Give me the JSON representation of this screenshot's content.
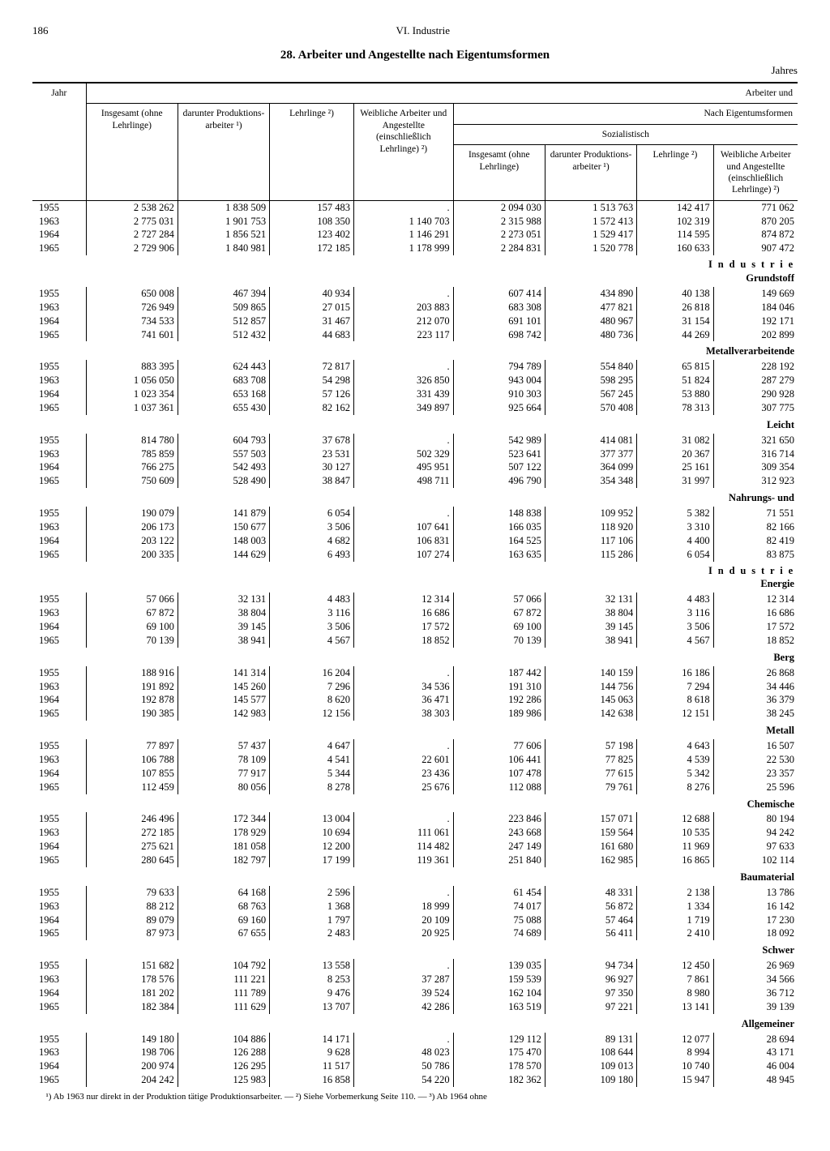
{
  "page_number": "186",
  "chapter": "VI. Industrie",
  "title": "28. Arbeiter und Angestellte nach Eigentumsformen",
  "subtitle_right": "Jahres",
  "header": {
    "row1_right": "Arbeiter und",
    "row2_right": "Nach Eigentumsformen",
    "row3_mid": "Sozialistisch",
    "jahr": "Jahr",
    "c1": "Insgesamt (ohne Lehrlinge)",
    "c2": "darunter Produktions- arbeiter ¹)",
    "c3": "Lehrlinge ²)",
    "c4": "Weibliche Arbeiter und Angestellte (einschließlich Lehrlinge) ²)",
    "c5": "Insgesamt (ohne Lehrlinge)",
    "c6": "darunter Produktions- arbeiter ¹)",
    "c7": "Lehrlinge ²)",
    "c8": "Weibliche Arbeiter und Angestellte (einschließlich Lehrlinge) ²)"
  },
  "groups": [
    {
      "label_top": "",
      "label_bot": "",
      "rows": [
        [
          "1955",
          "2 538 262",
          "1 838 509",
          "157 483",
          ".",
          "2 094 030",
          "1 513 763",
          "142 417",
          "771 062"
        ],
        [
          "1963",
          "2 775 031",
          "1 901 753",
          "108 350",
          "1 140 703",
          "2 315 988",
          "1 572 413",
          "102 319",
          "870 205"
        ],
        [
          "1964",
          "2 727 284",
          "1 856 521",
          "123 402",
          "1 146 291",
          "2 273 051",
          "1 529 417",
          "114 595",
          "874 872"
        ],
        [
          "1965",
          "2 729 906",
          "1 840 981",
          "172 185",
          "1 178 999",
          "2 284 831",
          "1 520 778",
          "160 633",
          "907 472"
        ]
      ]
    },
    {
      "label_top": "I n d u s t r i e",
      "label_bot": "Grundstoff",
      "rows": [
        [
          "1955",
          "650 008",
          "467 394",
          "40 934",
          ".",
          "607 414",
          "434 890",
          "40 138",
          "149 669"
        ],
        [
          "1963",
          "726 949",
          "509 865",
          "27 015",
          "203 883",
          "683 308",
          "477 821",
          "26 818",
          "184 046"
        ],
        [
          "1964",
          "734 533",
          "512 857",
          "31 467",
          "212 070",
          "691 101",
          "480 967",
          "31 154",
          "192 171"
        ],
        [
          "1965",
          "741 601",
          "512 432",
          "44 683",
          "223 117",
          "698 742",
          "480 736",
          "44 269",
          "202 899"
        ]
      ]
    },
    {
      "label_top": "",
      "label_bot": "Metallverarbeitende",
      "rows": [
        [
          "1955",
          "883 395",
          "624 443",
          "72 817",
          ".",
          "794 789",
          "554 840",
          "65 815",
          "228 192"
        ],
        [
          "1963",
          "1 056 050",
          "683 708",
          "54 298",
          "326 850",
          "943 004",
          "598 295",
          "51 824",
          "287 279"
        ],
        [
          "1964",
          "1 023 354",
          "653 168",
          "57 126",
          "331 439",
          "910 303",
          "567 245",
          "53 880",
          "290 928"
        ],
        [
          "1965",
          "1 037 361",
          "655 430",
          "82 162",
          "349 897",
          "925 664",
          "570 408",
          "78 313",
          "307 775"
        ]
      ]
    },
    {
      "label_top": "",
      "label_bot": "Leicht",
      "rows": [
        [
          "1955",
          "814 780",
          "604 793",
          "37 678",
          ".",
          "542 989",
          "414 081",
          "31 082",
          "321 650"
        ],
        [
          "1963",
          "785 859",
          "557 503",
          "23 531",
          "502 329",
          "523 641",
          "377 377",
          "20 367",
          "316 714"
        ],
        [
          "1964",
          "766 275",
          "542 493",
          "30 127",
          "495 951",
          "507 122",
          "364 099",
          "25 161",
          "309 354"
        ],
        [
          "1965",
          "750 609",
          "528 490",
          "38 847",
          "498 711",
          "496 790",
          "354 348",
          "31 997",
          "312 923"
        ]
      ]
    },
    {
      "label_top": "",
      "label_bot": "Nahrungs- und",
      "rows": [
        [
          "1955",
          "190 079",
          "141 879",
          "6 054",
          ".",
          "148 838",
          "109 952",
          "5 382",
          "71 551"
        ],
        [
          "1963",
          "206 173",
          "150 677",
          "3 506",
          "107 641",
          "166 035",
          "118 920",
          "3 310",
          "82 166"
        ],
        [
          "1964",
          "203 122",
          "148 003",
          "4 682",
          "106 831",
          "164 525",
          "117 106",
          "4 400",
          "82 419"
        ],
        [
          "1965",
          "200 335",
          "144 629",
          "6 493",
          "107 274",
          "163 635",
          "115 286",
          "6 054",
          "83 875"
        ]
      ]
    },
    {
      "label_top": "I n d u s t r i e",
      "label_bot": "Energie",
      "rows": [
        [
          "1955",
          "57 066",
          "32 131",
          "4 483",
          "12 314",
          "57 066",
          "32 131",
          "4 483",
          "12 314"
        ],
        [
          "1963",
          "67 872",
          "38 804",
          "3 116",
          "16 686",
          "67 872",
          "38 804",
          "3 116",
          "16 686"
        ],
        [
          "1964",
          "69 100",
          "39 145",
          "3 506",
          "17 572",
          "69 100",
          "39 145",
          "3 506",
          "17 572"
        ],
        [
          "1965",
          "70 139",
          "38 941",
          "4 567",
          "18 852",
          "70 139",
          "38 941",
          "4 567",
          "18 852"
        ]
      ]
    },
    {
      "label_top": "",
      "label_bot": "Berg",
      "rows": [
        [
          "1955",
          "188 916",
          "141 314",
          "16 204",
          ".",
          "187 442",
          "140 159",
          "16 186",
          "26 868"
        ],
        [
          "1963",
          "191 892",
          "145 260",
          "7 296",
          "34 536",
          "191 310",
          "144 756",
          "7 294",
          "34 446"
        ],
        [
          "1964",
          "192 878",
          "145 577",
          "8 620",
          "36 471",
          "192 286",
          "145 063",
          "8 618",
          "36 379"
        ],
        [
          "1965",
          "190 385",
          "142 983",
          "12 156",
          "38 303",
          "189 986",
          "142 638",
          "12 151",
          "38 245"
        ]
      ]
    },
    {
      "label_top": "",
      "label_bot": "Metall",
      "rows": [
        [
          "1955",
          "77 897",
          "57 437",
          "4 647",
          ".",
          "77 606",
          "57 198",
          "4 643",
          "16 507"
        ],
        [
          "1963",
          "106 788",
          "78 109",
          "4 541",
          "22 601",
          "106 441",
          "77 825",
          "4 539",
          "22 530"
        ],
        [
          "1964",
          "107 855",
          "77 917",
          "5 344",
          "23 436",
          "107 478",
          "77 615",
          "5 342",
          "23 357"
        ],
        [
          "1965",
          "112 459",
          "80 056",
          "8 278",
          "25 676",
          "112 088",
          "79 761",
          "8 276",
          "25 596"
        ]
      ]
    },
    {
      "label_top": "",
      "label_bot": "Chemische",
      "rows": [
        [
          "1955",
          "246 496",
          "172 344",
          "13 004",
          ".",
          "223 846",
          "157 071",
          "12 688",
          "80 194"
        ],
        [
          "1963",
          "272 185",
          "178 929",
          "10 694",
          "111 061",
          "243 668",
          "159 564",
          "10 535",
          "94 242"
        ],
        [
          "1964",
          "275 621",
          "181 058",
          "12 200",
          "114 482",
          "247 149",
          "161 680",
          "11 969",
          "97 633"
        ],
        [
          "1965",
          "280 645",
          "182 797",
          "17 199",
          "119 361",
          "251 840",
          "162 985",
          "16 865",
          "102 114"
        ]
      ]
    },
    {
      "label_top": "",
      "label_bot": "Baumaterial",
      "rows": [
        [
          "1955",
          "79 633",
          "64 168",
          "2 596",
          ".",
          "61 454",
          "48 331",
          "2 138",
          "13 786"
        ],
        [
          "1963",
          "88 212",
          "68 763",
          "1 368",
          "18 999",
          "74 017",
          "56 872",
          "1 334",
          "16 142"
        ],
        [
          "1964",
          "89 079",
          "69 160",
          "1 797",
          "20 109",
          "75 088",
          "57 464",
          "1 719",
          "17 230"
        ],
        [
          "1965",
          "87 973",
          "67 655",
          "2 483",
          "20 925",
          "74 689",
          "56 411",
          "2 410",
          "18 092"
        ]
      ]
    },
    {
      "label_top": "",
      "label_bot": "Schwer",
      "rows": [
        [
          "1955",
          "151 682",
          "104 792",
          "13 558",
          ".",
          "139 035",
          "94 734",
          "12 450",
          "26 969"
        ],
        [
          "1963",
          "178 576",
          "111 221",
          "8 253",
          "37 287",
          "159 539",
          "96 927",
          "7 861",
          "34 566"
        ],
        [
          "1964",
          "181 202",
          "111 789",
          "9 476",
          "39 524",
          "162 104",
          "97 350",
          "8 980",
          "36 712"
        ],
        [
          "1965",
          "182 384",
          "111 629",
          "13 707",
          "42 286",
          "163 519",
          "97 221",
          "13 141",
          "39 139"
        ]
      ]
    },
    {
      "label_top": "",
      "label_bot": "Allgemeiner",
      "rows": [
        [
          "1955",
          "149 180",
          "104 886",
          "14 171",
          ".",
          "129 112",
          "89 131",
          "12 077",
          "28 694"
        ],
        [
          "1963",
          "198 706",
          "126 288",
          "9 628",
          "48 023",
          "175 470",
          "108 644",
          "8 994",
          "43 171"
        ],
        [
          "1964",
          "200 974",
          "126 295",
          "11 517",
          "50 786",
          "178 570",
          "109 013",
          "10 740",
          "46 004"
        ],
        [
          "1965",
          "204 242",
          "125 983",
          "16 858",
          "54 220",
          "182 362",
          "109 180",
          "15 947",
          "48 945"
        ]
      ]
    }
  ],
  "footnote": "¹) Ab 1963 nur direkt in der Produktion tätige Produktionsarbeiter. — ²) Siehe Vorbemerkung Seite 110. — ³) Ab 1964 ohne"
}
